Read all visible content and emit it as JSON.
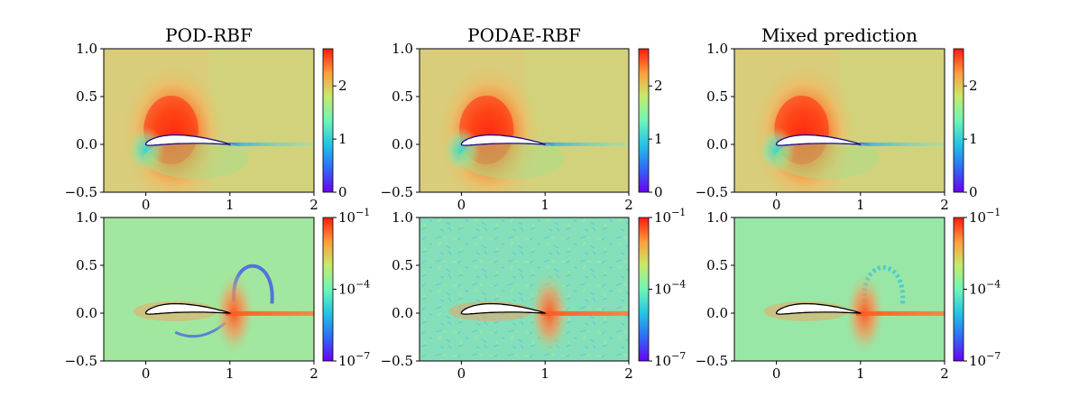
{
  "chart_data": [
    {
      "type": "heatmap",
      "title": "POD-RBF",
      "xlim": [
        -0.5,
        2
      ],
      "ylim": [
        -0.5,
        1.0
      ],
      "x_ticks": [
        {
          "v": 0,
          "label": "0"
        },
        {
          "v": 1,
          "label": "1"
        },
        {
          "v": 2,
          "label": "2"
        }
      ],
      "y_ticks": [
        {
          "v": 1.0,
          "label": "1.0"
        },
        {
          "v": 0.5,
          "label": "0.5"
        },
        {
          "v": 0.0,
          "label": "0.0"
        },
        {
          "v": -0.5,
          "label": "−0.5"
        }
      ],
      "colorbar": {
        "scale": "linear",
        "range": [
          0,
          2.7
        ],
        "ticks": [
          {
            "v": 0,
            "label": "0"
          },
          {
            "v": 1,
            "label": "1"
          },
          {
            "v": 2,
            "label": "2"
          }
        ]
      },
      "colormap": "rainbow"
    },
    {
      "type": "heatmap",
      "title": "PODAE-RBF",
      "xlim": [
        -0.5,
        2
      ],
      "ylim": [
        -0.5,
        1.0
      ],
      "x_ticks": [
        {
          "v": 0,
          "label": "0"
        },
        {
          "v": 1,
          "label": "1"
        },
        {
          "v": 2,
          "label": "2"
        }
      ],
      "y_ticks": [
        {
          "v": 1.0,
          "label": "1.0"
        },
        {
          "v": 0.5,
          "label": "0.5"
        },
        {
          "v": 0.0,
          "label": "0.0"
        },
        {
          "v": -0.5,
          "label": "−0.5"
        }
      ],
      "colorbar": {
        "scale": "linear",
        "range": [
          0,
          2.7
        ],
        "ticks": [
          {
            "v": 0,
            "label": "0"
          },
          {
            "v": 1,
            "label": "1"
          },
          {
            "v": 2,
            "label": "2"
          }
        ]
      },
      "colormap": "rainbow"
    },
    {
      "type": "heatmap",
      "title": "Mixed prediction",
      "xlim": [
        -0.5,
        2
      ],
      "ylim": [
        -0.5,
        1.0
      ],
      "x_ticks": [
        {
          "v": 0,
          "label": "0"
        },
        {
          "v": 1,
          "label": "1"
        },
        {
          "v": 2,
          "label": "2"
        }
      ],
      "y_ticks": [
        {
          "v": 1.0,
          "label": "1.0"
        },
        {
          "v": 0.5,
          "label": "0.5"
        },
        {
          "v": 0.0,
          "label": "0.0"
        },
        {
          "v": -0.5,
          "label": "−0.5"
        }
      ],
      "colorbar": {
        "scale": "linear",
        "range": [
          0,
          2.7
        ],
        "ticks": [
          {
            "v": 0,
            "label": "0"
          },
          {
            "v": 1,
            "label": "1"
          },
          {
            "v": 2,
            "label": "2"
          }
        ]
      },
      "colormap": "rainbow"
    },
    {
      "type": "heatmap",
      "title": "",
      "xlim": [
        -0.5,
        2
      ],
      "ylim": [
        -0.5,
        1.0
      ],
      "x_ticks": [
        {
          "v": 0,
          "label": "0"
        },
        {
          "v": 1,
          "label": "1"
        },
        {
          "v": 2,
          "label": "2"
        }
      ],
      "y_ticks": [
        {
          "v": 1.0,
          "label": "1.0"
        },
        {
          "v": 0.5,
          "label": "0.5"
        },
        {
          "v": 0.0,
          "label": "0.0"
        },
        {
          "v": -0.5,
          "label": "−0.5"
        }
      ],
      "colorbar": {
        "scale": "log",
        "range": [
          -7,
          -1
        ],
        "ticks": [
          {
            "v": -1,
            "base": "10",
            "exp": "−1"
          },
          {
            "v": -4,
            "base": "10",
            "exp": "−4"
          },
          {
            "v": -7,
            "base": "10",
            "exp": "−7"
          }
        ]
      },
      "colormap": "rainbow"
    },
    {
      "type": "heatmap",
      "title": "",
      "xlim": [
        -0.5,
        2
      ],
      "ylim": [
        -0.5,
        1.0
      ],
      "x_ticks": [
        {
          "v": 0,
          "label": "0"
        },
        {
          "v": 1,
          "label": "1"
        },
        {
          "v": 2,
          "label": "2"
        }
      ],
      "y_ticks": [
        {
          "v": 1.0,
          "label": "1.0"
        },
        {
          "v": 0.5,
          "label": "0.5"
        },
        {
          "v": 0.0,
          "label": "0.0"
        },
        {
          "v": -0.5,
          "label": "−0.5"
        }
      ],
      "colorbar": {
        "scale": "log",
        "range": [
          -7,
          -1
        ],
        "ticks": [
          {
            "v": -1,
            "base": "10",
            "exp": "−1"
          },
          {
            "v": -4,
            "base": "10",
            "exp": "−4"
          },
          {
            "v": -7,
            "base": "10",
            "exp": "−7"
          }
        ]
      },
      "colormap": "rainbow"
    },
    {
      "type": "heatmap",
      "title": "",
      "xlim": [
        -0.5,
        2
      ],
      "ylim": [
        -0.5,
        1.0
      ],
      "x_ticks": [
        {
          "v": 0,
          "label": "0"
        },
        {
          "v": 1,
          "label": "1"
        },
        {
          "v": 2,
          "label": "2"
        }
      ],
      "y_ticks": [
        {
          "v": 1.0,
          "label": "1.0"
        },
        {
          "v": 0.5,
          "label": "0.5"
        },
        {
          "v": 0.0,
          "label": "0.0"
        },
        {
          "v": -0.5,
          "label": "−0.5"
        }
      ],
      "colorbar": {
        "scale": "log",
        "range": [
          -7,
          -1
        ],
        "ticks": [
          {
            "v": -1,
            "base": "10",
            "exp": "−1"
          },
          {
            "v": -4,
            "base": "10",
            "exp": "−4"
          },
          {
            "v": -7,
            "base": "10",
            "exp": "−7"
          }
        ]
      },
      "colormap": "rainbow"
    }
  ]
}
